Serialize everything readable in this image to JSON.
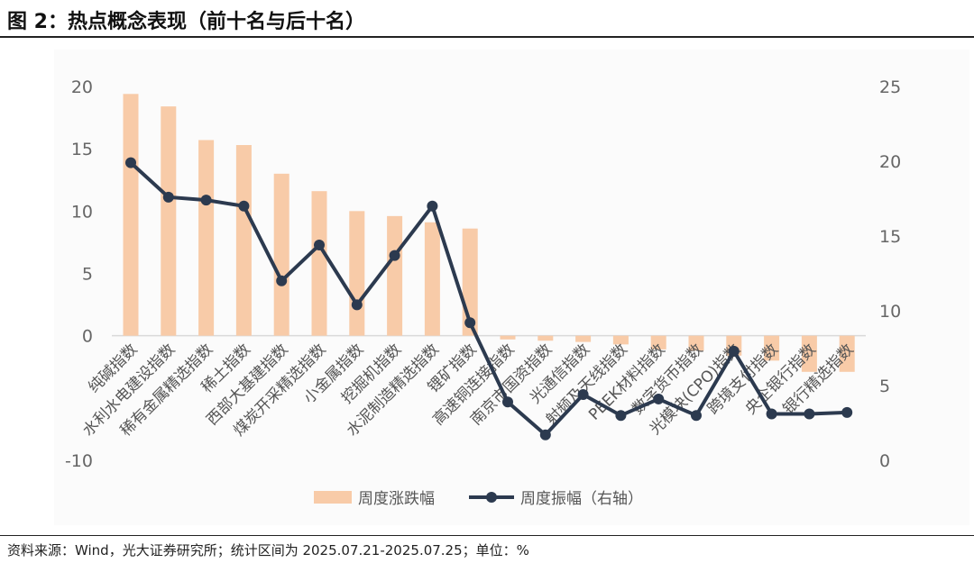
{
  "title": "图 2：热点概念表现（前十名与后十名）",
  "source": "资料来源：Wind，光大证券研究所；统计区间为 2025.07.21-2025.07.25；单位：%",
  "chart_data": {
    "type": "bar+line",
    "categories": [
      "纯碱指数",
      "水利水电建设指数",
      "稀有金属精选指数",
      "稀土指数",
      "西部大基建指数",
      "煤炭开采精选指数",
      "小金属指数",
      "挖掘机指数",
      "水泥制造精选指数",
      "锂矿指数",
      "高速铜连接指数",
      "南京市国资指数",
      "光通信指数",
      "射频及天线指数",
      "PEEK材料指数",
      "数字货币指数",
      "光模块(CPO)指数",
      "跨境支付指数",
      "央企银行指数",
      "银行精选指数"
    ],
    "series": [
      {
        "name": "周度涨跌幅",
        "type": "bar",
        "axis": "left",
        "color": "#f8cba8",
        "values": [
          19.4,
          18.4,
          15.7,
          15.3,
          13.0,
          11.6,
          10.0,
          9.6,
          9.1,
          8.6,
          -0.3,
          -0.4,
          -0.5,
          -0.7,
          -1.1,
          -1.2,
          -1.6,
          -2.0,
          -2.9,
          -2.9
        ]
      },
      {
        "name": "周度振幅（右轴）",
        "type": "line",
        "axis": "right",
        "color": "#2c3a4f",
        "values": [
          19.9,
          17.6,
          17.4,
          17.0,
          12.0,
          14.4,
          10.4,
          13.7,
          17.0,
          9.2,
          3.9,
          1.7,
          4.4,
          3.0,
          4.1,
          3.0,
          7.3,
          3.1,
          3.1,
          3.2
        ]
      }
    ],
    "left_axis": {
      "range": [
        -10,
        20
      ],
      "ticks": [
        20,
        15,
        10,
        5,
        0,
        -10
      ]
    },
    "right_axis": {
      "range": [
        0,
        25
      ],
      "ticks": [
        25,
        20,
        15,
        10,
        5,
        0
      ]
    },
    "legend_position": "bottom",
    "grid": false
  }
}
